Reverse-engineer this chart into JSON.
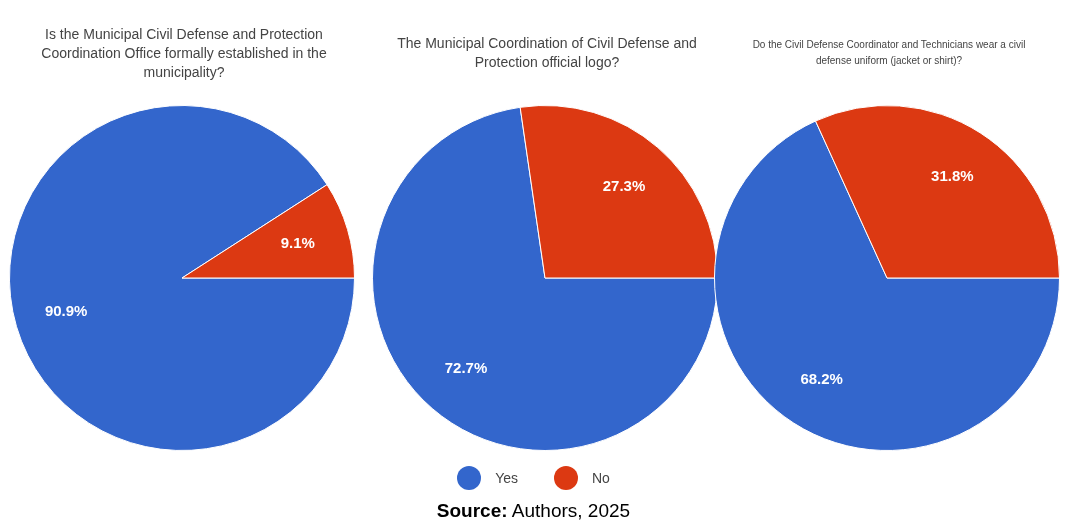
{
  "chart_data": [
    {
      "type": "pie",
      "title": "Is the Municipal Civil Defense and Protection Coordination Office formally established in the municipality?",
      "categories": [
        "Yes",
        "No"
      ],
      "values": [
        90.9,
        9.1
      ],
      "value_labels": [
        "90.9%",
        "9.1%"
      ],
      "colors": [
        "#3366cc",
        "#dc3912"
      ],
      "legend": "bottom"
    },
    {
      "type": "pie",
      "title": "The Municipal Coordination of Civil Defense and Protection official logo?",
      "categories": [
        null,
        null
      ],
      "values": [
        72.7,
        27.3
      ],
      "value_labels": [
        "72.7%",
        "27.3%"
      ],
      "colors": [
        "#3366cc",
        "#dc3912"
      ],
      "annotations": [
        "Source: Authors, 2025"
      ]
    },
    {
      "type": "pie",
      "title": "Do the Civil Defense Coordinator and Technicians wear a civil defense uniform (jacket or shirt)?",
      "categories": [
        null,
        null
      ],
      "values": [
        68.2,
        31.8
      ],
      "value_labels": [
        "68.2%",
        "31.8%"
      ],
      "colors": [
        "#3366cc",
        "#dc3912"
      ]
    }
  ]
}
